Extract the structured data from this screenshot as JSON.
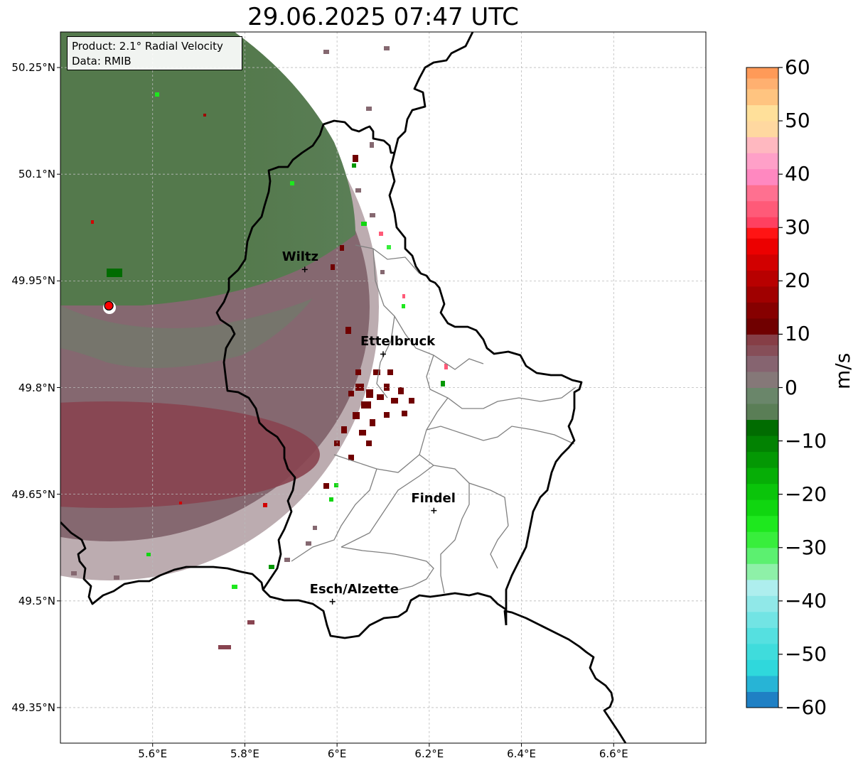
{
  "title": "29.06.2025 07:47 UTC",
  "info": {
    "product": "Product: 2.1° Radial Velocity",
    "data_source": "Data: RMIB"
  },
  "cities": [
    {
      "name": "Wiltz",
      "lon": 5.93,
      "lat": 49.966
    },
    {
      "name": "Ettelbruck",
      "lon": 6.1,
      "lat": 49.847
    },
    {
      "name": "Findel",
      "lon": 6.21,
      "lat": 49.627
    },
    {
      "name": "Esch/Alzette",
      "lon": 5.99,
      "lat": 49.499
    }
  ],
  "radar_site": {
    "lon": 5.505,
    "lat": 49.915
  },
  "map_extent": {
    "lon_min": 5.4,
    "lon_max": 6.8,
    "lat_min": 49.3,
    "lat_max": 50.3
  },
  "lat_ticks": [
    {
      "value": 50.25,
      "label": "50.25°N"
    },
    {
      "value": 50.1,
      "label": "50.1°N"
    },
    {
      "value": 49.95,
      "label": "49.95°N"
    },
    {
      "value": 49.8,
      "label": "49.8°N"
    },
    {
      "value": 49.65,
      "label": "49.65°N"
    },
    {
      "value": 49.5,
      "label": "49.5°N"
    },
    {
      "value": 49.35,
      "label": "49.35°N"
    }
  ],
  "lon_ticks": [
    {
      "value": 5.6,
      "label": "5.6°E"
    },
    {
      "value": 5.8,
      "label": "5.8°E"
    },
    {
      "value": 6.0,
      "label": "6°E"
    },
    {
      "value": 6.2,
      "label": "6.2°E"
    },
    {
      "value": 6.4,
      "label": "6.4°E"
    },
    {
      "value": 6.6,
      "label": "6.6°E"
    }
  ],
  "colorbar": {
    "unit": "m/s",
    "min": -60,
    "max": 60,
    "ticks": [
      {
        "value": 60,
        "label": "60"
      },
      {
        "value": 50,
        "label": "50"
      },
      {
        "value": 40,
        "label": "40"
      },
      {
        "value": 30,
        "label": "30"
      },
      {
        "value": 20,
        "label": "20"
      },
      {
        "value": 10,
        "label": "10"
      },
      {
        "value": 0,
        "label": "0"
      },
      {
        "value": -10,
        "label": "−10"
      },
      {
        "value": -20,
        "label": "−20"
      },
      {
        "value": -30,
        "label": "−30"
      },
      {
        "value": -40,
        "label": "−40"
      },
      {
        "value": -50,
        "label": "−50"
      },
      {
        "value": -60,
        "label": "−60"
      }
    ],
    "stops": [
      {
        "from": -60,
        "to": -57,
        "color": "#1f80c4"
      },
      {
        "from": -57,
        "to": -54,
        "color": "#27b4d6"
      },
      {
        "from": -54,
        "to": -51,
        "color": "#2fd8dc"
      },
      {
        "from": -51,
        "to": -48,
        "color": "#3fdcdc"
      },
      {
        "from": -48,
        "to": -45,
        "color": "#55e0e0"
      },
      {
        "from": -45,
        "to": -42,
        "color": "#72e4e4"
      },
      {
        "from": -42,
        "to": -39,
        "color": "#90e8e8"
      },
      {
        "from": -39,
        "to": -36,
        "color": "#aeeeee"
      },
      {
        "from": -36,
        "to": -33,
        "color": "#8ef0a8"
      },
      {
        "from": -33,
        "to": -30,
        "color": "#5cf070"
      },
      {
        "from": -30,
        "to": -27,
        "color": "#38ee3c"
      },
      {
        "from": -27,
        "to": -24,
        "color": "#1ee81e"
      },
      {
        "from": -24,
        "to": -21,
        "color": "#10d610"
      },
      {
        "from": -21,
        "to": -18,
        "color": "#0ac40a"
      },
      {
        "from": -18,
        "to": -15,
        "color": "#06ae06"
      },
      {
        "from": -15,
        "to": -12,
        "color": "#049804"
      },
      {
        "from": -12,
        "to": -9,
        "color": "#028202"
      },
      {
        "from": -9,
        "to": -6,
        "color": "#016c01"
      },
      {
        "from": -6,
        "to": -3,
        "color": "#5a7e56"
      },
      {
        "from": -3,
        "to": 0,
        "color": "#6a866a"
      },
      {
        "from": 0,
        "to": 3,
        "color": "#857878"
      },
      {
        "from": 3,
        "to": 6,
        "color": "#866470"
      },
      {
        "from": 6,
        "to": 8,
        "color": "#864e58"
      },
      {
        "from": 8,
        "to": 10,
        "color": "#863e46"
      },
      {
        "from": 10,
        "to": 13,
        "color": "#700000"
      },
      {
        "from": 13,
        "to": 16,
        "color": "#860000"
      },
      {
        "from": 16,
        "to": 19,
        "color": "#a00000"
      },
      {
        "from": 19,
        "to": 22,
        "color": "#b80000"
      },
      {
        "from": 22,
        "to": 25,
        "color": "#d20000"
      },
      {
        "from": 25,
        "to": 28,
        "color": "#ec0000"
      },
      {
        "from": 28,
        "to": 30,
        "color": "#ff1414"
      },
      {
        "from": 30,
        "to": 32,
        "color": "#ff4060"
      },
      {
        "from": 32,
        "to": 35,
        "color": "#ff5a78"
      },
      {
        "from": 35,
        "to": 38,
        "color": "#ff7090"
      },
      {
        "from": 38,
        "to": 41,
        "color": "#ff88c0"
      },
      {
        "from": 41,
        "to": 44,
        "color": "#ffa0c8"
      },
      {
        "from": 44,
        "to": 47,
        "color": "#ffb8c0"
      },
      {
        "from": 47,
        "to": 50,
        "color": "#ffd8a0"
      },
      {
        "from": 50,
        "to": 53,
        "color": "#ffe09a"
      },
      {
        "from": 53,
        "to": 56,
        "color": "#ffc480"
      },
      {
        "from": 56,
        "to": 58,
        "color": "#ffb070"
      },
      {
        "from": 58,
        "to": 60,
        "color": "#ff9a58"
      }
    ]
  },
  "colors": {
    "outbound_far": "#884450",
    "outbound_near": "#856870",
    "inbound": "#54794c",
    "border": "#000000",
    "canton": "#808080",
    "radar_marker": "#ff0000"
  }
}
